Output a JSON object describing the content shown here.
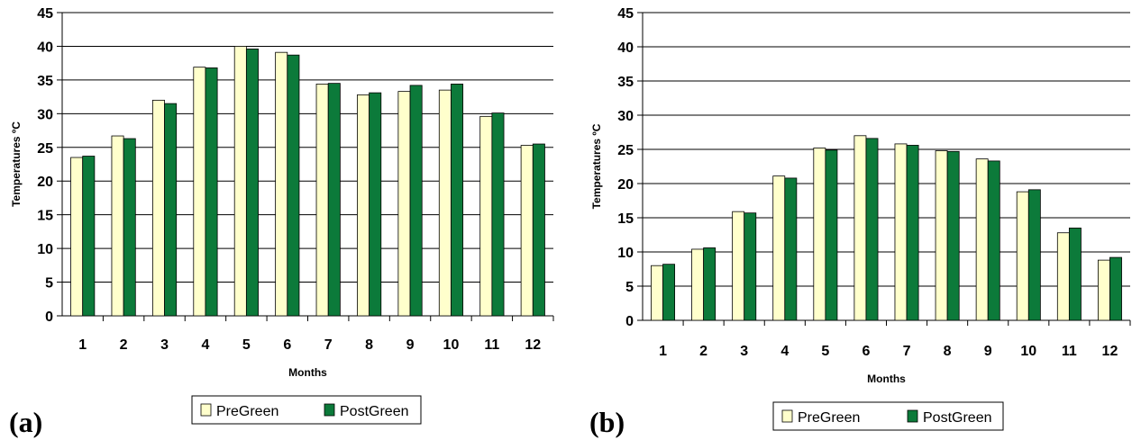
{
  "colors": {
    "pre": "#FFFFCC",
    "post": "#0C7A3A",
    "grid": "#000000",
    "background": "#FFFFFF"
  },
  "chart_data": [
    {
      "panel_label": "(a)",
      "type": "bar",
      "xlabel": "Months",
      "ylabel": "Temperatures ºC",
      "ylim": [
        0,
        45
      ],
      "yticks": [
        0,
        5,
        10,
        15,
        20,
        25,
        30,
        35,
        40,
        45
      ],
      "grid": "horizontal",
      "legend_position": "bottom",
      "categories": [
        "1",
        "2",
        "3",
        "4",
        "5",
        "6",
        "7",
        "8",
        "9",
        "10",
        "11",
        "12"
      ],
      "series": [
        {
          "name": "PreGreen",
          "values": [
            23.5,
            26.7,
            32.0,
            36.9,
            40.0,
            39.1,
            34.4,
            32.8,
            33.3,
            33.5,
            29.6,
            25.3
          ]
        },
        {
          "name": "PostGreen",
          "values": [
            23.7,
            26.3,
            31.5,
            36.8,
            39.6,
            38.7,
            34.5,
            33.1,
            34.2,
            34.4,
            30.1,
            25.5
          ]
        }
      ]
    },
    {
      "panel_label": "(b)",
      "type": "bar",
      "xlabel": "Months",
      "ylabel": "Temperatures ºC",
      "ylim": [
        0,
        45
      ],
      "yticks": [
        0,
        5,
        10,
        15,
        20,
        25,
        30,
        35,
        40,
        45
      ],
      "grid": "horizontal",
      "legend_position": "bottom",
      "categories": [
        "1",
        "2",
        "3",
        "4",
        "5",
        "6",
        "7",
        "8",
        "9",
        "10",
        "11",
        "12"
      ],
      "series": [
        {
          "name": "PreGreen",
          "values": [
            8.0,
            10.4,
            15.9,
            21.1,
            25.2,
            27.0,
            25.8,
            24.8,
            23.6,
            18.8,
            12.8,
            8.8
          ]
        },
        {
          "name": "PostGreen",
          "values": [
            8.2,
            10.6,
            15.7,
            20.8,
            24.9,
            26.6,
            25.6,
            24.7,
            23.3,
            19.1,
            13.5,
            9.2
          ]
        }
      ]
    }
  ]
}
